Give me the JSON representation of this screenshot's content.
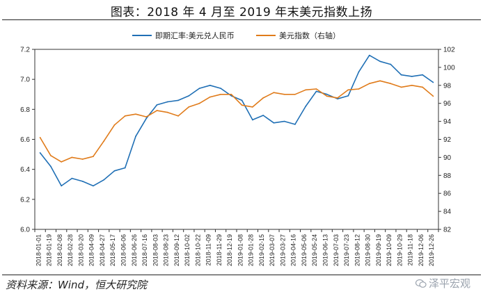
{
  "title": "图表：2018 年 4 月至 2019 年末美元指数上扬",
  "source": "资料来源：Wind，恒大研究院",
  "watermark": "泽平宏观",
  "colors": {
    "series_fx": "#1f6fb5",
    "series_dxy": "#e07b1a"
  },
  "chart_data": {
    "type": "line",
    "legend_position": "top-center",
    "grid": false,
    "x_ticks": [
      "2018-01-01",
      "2018-01-19",
      "2018-02-08",
      "2018-02-28",
      "2018-03-20",
      "2018-04-09",
      "2018-04-27",
      "2018-05-17",
      "2018-06-06",
      "2018-06-26",
      "2018-07-16",
      "2018-08-03",
      "2018-08-23",
      "2018-09-12",
      "2018-10-02",
      "2018-10-22",
      "2018-11-09",
      "2018-11-29",
      "2018-12-19",
      "2019-01-08",
      "2019-01-28",
      "2019-02-15",
      "2019-03-07",
      "2019-03-27",
      "2019-04-16",
      "2019-05-06",
      "2019-05-24",
      "2019-06-13",
      "2019-07-03",
      "2019-07-23",
      "2019-08-12",
      "2019-08-30",
      "2019-09-19",
      "2019-10-09",
      "2019-10-29",
      "2019-11-18",
      "2019-12-06",
      "2019-12-26"
    ],
    "y_left": {
      "min": 6.0,
      "max": 7.2,
      "ticks": [
        "6.0",
        "6.2",
        "6.4",
        "6.6",
        "6.8",
        "7.0",
        "7.2"
      ]
    },
    "y_right": {
      "min": 82,
      "max": 102,
      "ticks": [
        "82",
        "84",
        "86",
        "88",
        "90",
        "92",
        "94",
        "96",
        "98",
        "100",
        "102"
      ]
    },
    "series": [
      {
        "name": "即期汇率:美元兑人民币",
        "axis": "left",
        "x": [
          "2018-01-01",
          "2018-01-19",
          "2018-02-08",
          "2018-02-28",
          "2018-03-20",
          "2018-04-09",
          "2018-04-27",
          "2018-05-17",
          "2018-06-06",
          "2018-06-26",
          "2018-07-16",
          "2018-08-03",
          "2018-08-23",
          "2018-09-12",
          "2018-10-02",
          "2018-10-22",
          "2018-11-09",
          "2018-11-29",
          "2018-12-19",
          "2019-01-08",
          "2019-01-28",
          "2019-02-15",
          "2019-03-07",
          "2019-03-27",
          "2019-04-16",
          "2019-05-06",
          "2019-05-24",
          "2019-06-13",
          "2019-07-03",
          "2019-07-23",
          "2019-08-12",
          "2019-08-30",
          "2019-09-19",
          "2019-10-09",
          "2019-10-29",
          "2019-11-18",
          "2019-12-06",
          "2019-12-26"
        ],
        "values": [
          6.51,
          6.42,
          6.29,
          6.34,
          6.32,
          6.29,
          6.33,
          6.39,
          6.41,
          6.62,
          6.74,
          6.83,
          6.85,
          6.86,
          6.89,
          6.94,
          6.96,
          6.94,
          6.89,
          6.86,
          6.73,
          6.76,
          6.71,
          6.72,
          6.7,
          6.82,
          6.92,
          6.9,
          6.87,
          6.89,
          7.05,
          7.16,
          7.12,
          7.1,
          7.03,
          7.02,
          7.03,
          6.98
        ]
      },
      {
        "name": "美元指数（右轴）",
        "axis": "right",
        "x": [
          "2018-01-01",
          "2018-01-19",
          "2018-02-08",
          "2018-02-28",
          "2018-03-20",
          "2018-04-09",
          "2018-04-27",
          "2018-05-17",
          "2018-06-06",
          "2018-06-26",
          "2018-07-16",
          "2018-08-03",
          "2018-08-23",
          "2018-09-12",
          "2018-10-02",
          "2018-10-22",
          "2018-11-09",
          "2018-11-29",
          "2018-12-19",
          "2019-01-08",
          "2019-01-28",
          "2019-02-15",
          "2019-03-07",
          "2019-03-27",
          "2019-04-16",
          "2019-05-06",
          "2019-05-24",
          "2019-06-13",
          "2019-07-03",
          "2019-07-23",
          "2019-08-12",
          "2019-08-30",
          "2019-09-19",
          "2019-10-09",
          "2019-10-29",
          "2019-11-18",
          "2019-12-06",
          "2019-12-26"
        ],
        "values": [
          92.2,
          90.2,
          89.5,
          90.0,
          89.8,
          90.1,
          91.8,
          93.6,
          94.6,
          94.8,
          94.5,
          95.2,
          95.0,
          94.6,
          95.6,
          96.0,
          96.7,
          97.0,
          97.0,
          95.8,
          95.6,
          96.6,
          97.2,
          97.0,
          97.0,
          97.5,
          97.6,
          96.8,
          96.6,
          97.5,
          97.6,
          98.2,
          98.5,
          98.2,
          97.8,
          98.0,
          97.8,
          96.8
        ]
      }
    ]
  }
}
